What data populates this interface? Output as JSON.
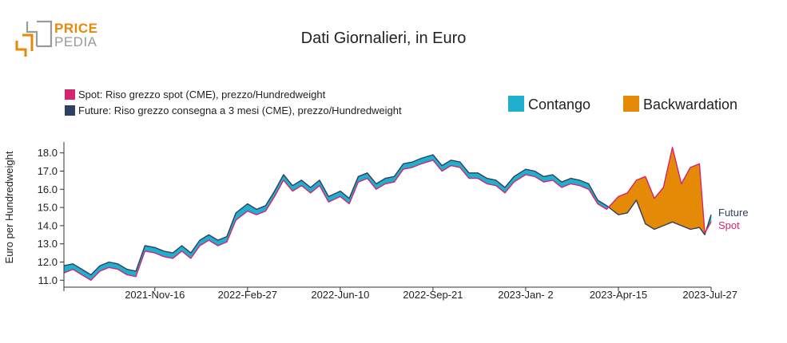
{
  "logo": {
    "line1": "PRICE",
    "line2": "PEDIA"
  },
  "chart_data": {
    "type": "line",
    "title": "Dati Giornalieri, in Euro",
    "ylabel": "Euro per Hundredweight",
    "xlabel": "",
    "ylim": [
      10.75,
      18.6
    ],
    "yticks": [
      11.0,
      12.0,
      13.0,
      14.0,
      15.0,
      16.0,
      17.0,
      18.0
    ],
    "ytick_labels": [
      "11.0",
      "12.0",
      "13.0",
      "14.0",
      "15.0",
      "16.0",
      "17.0",
      "18.0"
    ],
    "xlim": [
      "2021-08-07",
      "2023-07-27"
    ],
    "xticks": [
      "2021-11-16",
      "2022-02-27",
      "2022-06-10",
      "2022-09-21",
      "2023-01-02",
      "2023-04-15",
      "2023-07-27"
    ],
    "xtick_labels": [
      "2021-Nov-16",
      "2022-Feb-27",
      "2022-Jun-10",
      "2022-Sep-21",
      "2023-Jan- 2",
      "2023-Apr-15",
      "2023-Jul-27"
    ],
    "grid": false,
    "legend_position": "top-left",
    "colors": {
      "spot": "#d6246e",
      "future": "#2f3f5f",
      "contango": "#1fb0cf",
      "backwardation": "#e58a07"
    },
    "series": [
      {
        "name": "Spot: Riso grezzo spot (CME), prezzo/Hundredweight",
        "end_label": "Spot",
        "x": [
          "2021-08-07",
          "2021-08-17",
          "2021-08-27",
          "2021-09-06",
          "2021-09-16",
          "2021-09-26",
          "2021-10-06",
          "2021-10-16",
          "2021-10-26",
          "2021-11-05",
          "2021-11-16",
          "2021-11-26",
          "2021-12-06",
          "2021-12-16",
          "2021-12-26",
          "2022-01-05",
          "2022-01-15",
          "2022-01-25",
          "2022-02-04",
          "2022-02-14",
          "2022-02-27",
          "2022-03-09",
          "2022-03-19",
          "2022-03-29",
          "2022-04-08",
          "2022-04-18",
          "2022-04-28",
          "2022-05-08",
          "2022-05-18",
          "2022-05-28",
          "2022-06-10",
          "2022-06-20",
          "2022-06-30",
          "2022-07-10",
          "2022-07-20",
          "2022-07-30",
          "2022-08-09",
          "2022-08-19",
          "2022-08-29",
          "2022-09-08",
          "2022-09-21",
          "2022-10-01",
          "2022-10-11",
          "2022-10-21",
          "2022-10-31",
          "2022-11-10",
          "2022-11-20",
          "2022-11-30",
          "2022-12-10",
          "2022-12-20",
          "2023-01-02",
          "2023-01-12",
          "2023-01-22",
          "2023-02-01",
          "2023-02-11",
          "2023-02-21",
          "2023-03-03",
          "2023-03-13",
          "2023-03-23",
          "2023-04-02",
          "2023-04-15",
          "2023-04-25",
          "2023-05-05",
          "2023-05-15",
          "2023-05-25",
          "2023-06-04",
          "2023-06-14",
          "2023-06-24",
          "2023-07-04",
          "2023-07-14",
          "2023-07-20",
          "2023-07-27"
        ],
        "values": [
          11.4,
          11.6,
          11.3,
          11.0,
          11.5,
          11.7,
          11.6,
          11.3,
          11.2,
          12.6,
          12.5,
          12.3,
          12.2,
          12.6,
          12.2,
          12.9,
          13.2,
          12.9,
          13.1,
          14.3,
          14.8,
          14.6,
          14.8,
          15.6,
          16.5,
          15.9,
          16.2,
          15.8,
          16.2,
          15.3,
          15.6,
          15.2,
          16.4,
          16.6,
          16.0,
          16.3,
          16.4,
          17.1,
          17.2,
          17.4,
          17.6,
          17.0,
          17.3,
          17.2,
          16.6,
          16.6,
          16.3,
          16.2,
          15.8,
          16.4,
          16.8,
          16.7,
          16.4,
          16.5,
          16.1,
          16.3,
          16.2,
          16.0,
          15.2,
          14.9,
          15.6,
          15.8,
          16.5,
          16.7,
          15.5,
          16.1,
          18.3,
          16.3,
          17.2,
          17.4,
          13.6,
          14.2
        ]
      },
      {
        "name": "Future: Riso grezzo consegna a 3 mesi (CME), prezzo/Hundredweight",
        "end_label": "Future",
        "x": [
          "2021-08-07",
          "2021-08-17",
          "2021-08-27",
          "2021-09-06",
          "2021-09-16",
          "2021-09-26",
          "2021-10-06",
          "2021-10-16",
          "2021-10-26",
          "2021-11-05",
          "2021-11-16",
          "2021-11-26",
          "2021-12-06",
          "2021-12-16",
          "2021-12-26",
          "2022-01-05",
          "2022-01-15",
          "2022-01-25",
          "2022-02-04",
          "2022-02-14",
          "2022-02-27",
          "2022-03-09",
          "2022-03-19",
          "2022-03-29",
          "2022-04-08",
          "2022-04-18",
          "2022-04-28",
          "2022-05-08",
          "2022-05-18",
          "2022-05-28",
          "2022-06-10",
          "2022-06-20",
          "2022-06-30",
          "2022-07-10",
          "2022-07-20",
          "2022-07-30",
          "2022-08-09",
          "2022-08-19",
          "2022-08-29",
          "2022-09-08",
          "2022-09-21",
          "2022-10-01",
          "2022-10-11",
          "2022-10-21",
          "2022-10-31",
          "2022-11-10",
          "2022-11-20",
          "2022-11-30",
          "2022-12-10",
          "2022-12-20",
          "2023-01-02",
          "2023-01-12",
          "2023-01-22",
          "2023-02-01",
          "2023-02-11",
          "2023-02-21",
          "2023-03-03",
          "2023-03-13",
          "2023-03-23",
          "2023-04-02",
          "2023-04-15",
          "2023-04-25",
          "2023-05-05",
          "2023-05-15",
          "2023-05-25",
          "2023-06-04",
          "2023-06-14",
          "2023-06-24",
          "2023-07-04",
          "2023-07-14",
          "2023-07-20",
          "2023-07-27"
        ],
        "values": [
          11.8,
          11.9,
          11.6,
          11.3,
          11.8,
          12.0,
          11.9,
          11.6,
          11.5,
          12.9,
          12.8,
          12.6,
          12.5,
          12.9,
          12.5,
          13.2,
          13.5,
          13.2,
          13.4,
          14.7,
          15.2,
          14.9,
          15.1,
          15.9,
          16.8,
          16.2,
          16.5,
          16.1,
          16.5,
          15.6,
          15.9,
          15.5,
          16.7,
          16.9,
          16.3,
          16.6,
          16.7,
          17.4,
          17.5,
          17.7,
          17.9,
          17.3,
          17.6,
          17.5,
          16.9,
          16.9,
          16.6,
          16.5,
          16.1,
          16.7,
          17.1,
          17.0,
          16.7,
          16.8,
          16.4,
          16.6,
          16.5,
          16.3,
          15.4,
          15.1,
          14.6,
          14.7,
          15.4,
          14.1,
          13.8,
          14.0,
          14.2,
          14.0,
          13.8,
          13.9,
          13.5,
          14.6
        ]
      }
    ],
    "area_legend": [
      {
        "label": "Contango",
        "color": "#1fb0cf"
      },
      {
        "label": "Backwardation",
        "color": "#e58a07"
      }
    ]
  }
}
